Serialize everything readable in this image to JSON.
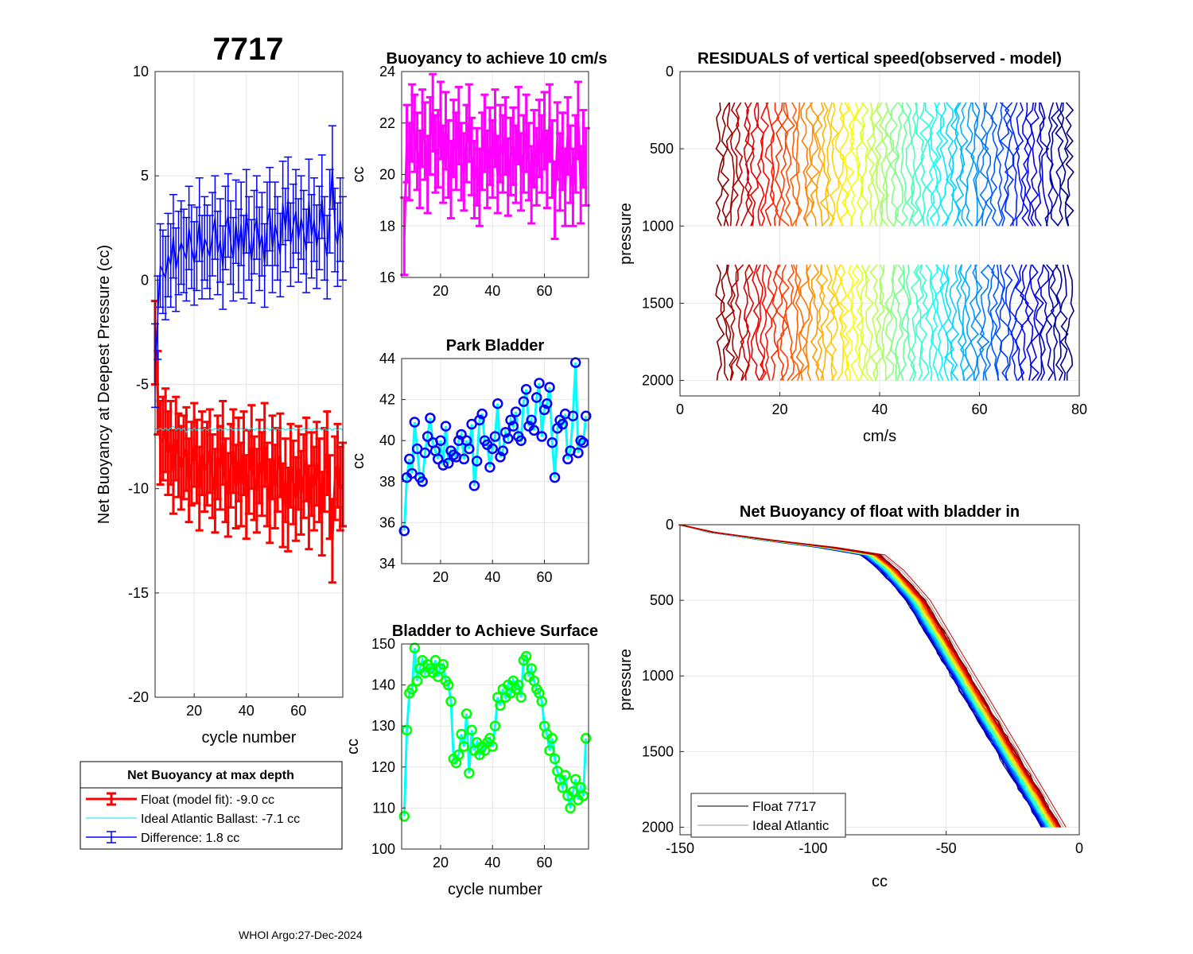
{
  "figure": {
    "main_title": "7717",
    "footer": "WHOI Argo:27-Dec-2024"
  },
  "colors": {
    "float_fit": "#ff0000",
    "ideal": "#00e5ee",
    "difference": "#0000ff",
    "buoyancy": "#ff00ff",
    "park_line": "#00ffff",
    "park_marker": "#0000ff",
    "surface_line": "#00ffff",
    "surface_marker": "#00ff00",
    "grid": "#e6e6e6"
  },
  "legend": {
    "title": "Net Buoyancy at max depth",
    "items": [
      {
        "label": "Float (model fit):  -9.0 cc",
        "color": "#ff0000"
      },
      {
        "label": "Ideal Atlantic Ballast:  -7.1 cc",
        "color": "#00e5ee"
      },
      {
        "label": "Difference:   1.8 cc",
        "color": "#0000ff"
      }
    ]
  },
  "legend2": {
    "items": [
      {
        "label": "Float 7717",
        "color": "#000000"
      },
      {
        "label": "Ideal Atlantic",
        "color": "#9a9a9a"
      }
    ]
  },
  "chart_data": [
    {
      "id": "net-buoyancy",
      "type": "line",
      "title": "",
      "xlabel": "cycle number",
      "ylabel": "Net Buoyancy at Deepest Pressure (cc)",
      "xlim": [
        5,
        77
      ],
      "ylim": [
        -20,
        10
      ],
      "xticks": [
        20,
        40,
        60
      ],
      "yticks": [
        -20,
        -15,
        -10,
        -5,
        0,
        5,
        10
      ],
      "grid": true,
      "x": [
        5,
        6,
        7,
        8,
        9,
        10,
        11,
        12,
        13,
        14,
        15,
        16,
        17,
        18,
        19,
        20,
        21,
        22,
        23,
        24,
        25,
        26,
        27,
        28,
        29,
        30,
        31,
        32,
        33,
        34,
        35,
        36,
        37,
        38,
        39,
        40,
        41,
        42,
        43,
        44,
        45,
        46,
        47,
        48,
        49,
        50,
        51,
        52,
        53,
        54,
        55,
        56,
        57,
        58,
        59,
        60,
        61,
        62,
        63,
        64,
        65,
        66,
        67,
        68,
        69,
        70,
        71,
        72,
        73,
        74,
        75,
        76,
        77
      ],
      "series": [
        {
          "name": "Float (model fit)",
          "values": [
            -3.0,
            -5.4,
            -7.8,
            -7.6,
            -7.2,
            -8.3,
            -7.8,
            -9.2,
            -7.6,
            -8.4,
            -9.0,
            -8.5,
            -8.1,
            -9.6,
            -8.8,
            -7.9,
            -8.7,
            -10.0,
            -8.3,
            -9.1,
            -8.8,
            -8.2,
            -9.4,
            -10.1,
            -8.5,
            -9.0,
            -7.8,
            -9.6,
            -10.3,
            -8.9,
            -8.2,
            -9.9,
            -8.6,
            -9.8,
            -8.3,
            -10.4,
            -9.2,
            -8.0,
            -9.5,
            -10.1,
            -8.7,
            -9.3,
            -7.9,
            -9.8,
            -10.6,
            -8.5,
            -9.9,
            -9.1,
            -8.4,
            -10.8,
            -9.6,
            -11.0,
            -8.9,
            -9.7,
            -10.5,
            -9.0,
            -10.2,
            -9.4,
            -8.6,
            -10.9,
            -9.3,
            -10.0,
            -8.8,
            -9.6,
            -11.2,
            -9.1,
            -8.3,
            -10.4,
            -12.5,
            -9.5,
            -8.9,
            -10.0,
            -9.8
          ],
          "error": 2.0,
          "color": "#ff0000"
        },
        {
          "name": "Ideal Atlantic Ballast",
          "values": [
            -7.1,
            -7.2,
            -7.1,
            -7.2,
            -7.1,
            -7.2,
            -7.1,
            -7.0,
            -7.2,
            -7.1,
            -7.2,
            -7.1,
            -7.3,
            -7.1,
            -7.2,
            -7.1,
            -7.2,
            -7.1,
            -7.2,
            -7.1,
            -7.2,
            -7.1,
            -7.2,
            -7.1,
            -7.2,
            -7.1,
            -7.2,
            -7.1,
            -7.2,
            -7.1,
            -7.2,
            -7.1,
            -7.2,
            -7.1,
            -7.2,
            -7.1,
            -7.2,
            -7.1,
            -7.2,
            -7.1,
            -7.2,
            -7.1,
            -7.2,
            -7.1,
            -7.2,
            -7.1,
            -7.2,
            -7.1,
            -7.2,
            -7.1,
            -7.2,
            -7.1,
            -7.2,
            -7.1,
            -7.2,
            -7.1,
            -7.2,
            -7.1,
            -7.2,
            -7.1,
            -7.2,
            -7.1,
            -7.2,
            -7.1,
            -7.2,
            -7.1,
            -7.2,
            -7.1,
            -7.2,
            -7.1,
            -7.2,
            -7.1,
            -7.2
          ],
          "color": "#00e5ee"
        },
        {
          "name": "Difference",
          "values": [
            -4.1,
            -1.8,
            0.7,
            0.4,
            0.1,
            1.2,
            0.7,
            2.1,
            0.5,
            1.3,
            1.8,
            1.4,
            1.0,
            2.5,
            1.6,
            0.8,
            1.5,
            2.9,
            1.1,
            2.0,
            1.6,
            1.1,
            2.2,
            3.0,
            1.3,
            1.9,
            0.6,
            2.5,
            3.1,
            1.8,
            1.0,
            2.8,
            1.4,
            2.7,
            1.1,
            3.3,
            2.0,
            0.9,
            2.3,
            3.0,
            1.5,
            2.2,
            0.7,
            2.7,
            3.4,
            1.4,
            2.7,
            2.0,
            1.2,
            3.7,
            2.4,
            3.9,
            1.7,
            2.6,
            3.3,
            1.9,
            3.0,
            2.3,
            1.4,
            3.8,
            2.1,
            2.9,
            1.6,
            2.5,
            4.0,
            2.0,
            1.1,
            3.3,
            5.4,
            2.4,
            1.7,
            2.9,
            2.0
          ],
          "error": 2.0,
          "color": "#0000ff"
        }
      ]
    },
    {
      "id": "buoyancy-10cms",
      "type": "line",
      "title": "Buoyancy to achieve 10 cm/s",
      "xlabel": "",
      "ylabel": "cc",
      "xlim": [
        5,
        77
      ],
      "ylim": [
        16,
        24
      ],
      "xticks": [
        20,
        40,
        60
      ],
      "yticks": [
        16,
        18,
        20,
        22,
        24
      ],
      "grid": true,
      "x": [
        6,
        7,
        8,
        9,
        10,
        11,
        12,
        13,
        14,
        15,
        16,
        17,
        18,
        19,
        20,
        21,
        22,
        23,
        24,
        25,
        26,
        27,
        28,
        29,
        30,
        31,
        32,
        33,
        34,
        35,
        36,
        37,
        38,
        39,
        40,
        41,
        42,
        43,
        44,
        45,
        46,
        47,
        48,
        49,
        50,
        51,
        52,
        53,
        54,
        55,
        56,
        57,
        58,
        59,
        60,
        61,
        62,
        63,
        64,
        65,
        66,
        67,
        68,
        69,
        70,
        71,
        72,
        73,
        74,
        75,
        76
      ],
      "series": [
        {
          "name": "Buoyancy",
          "values": [
            17.6,
            21.2,
            20.5,
            22.0,
            21.6,
            20.9,
            20.2,
            21.8,
            21.3,
            20.0,
            21.5,
            22.4,
            20.8,
            21.0,
            22.1,
            20.4,
            21.7,
            20.6,
            19.8,
            21.4,
            20.9,
            21.9,
            20.5,
            20.1,
            21.2,
            22.0,
            20.7,
            19.8,
            20.3,
            19.5,
            20.9,
            21.6,
            20.2,
            21.1,
            20.6,
            21.8,
            20.0,
            21.2,
            20.8,
            21.5,
            19.9,
            20.7,
            21.1,
            20.4,
            21.9,
            20.1,
            20.8,
            21.6,
            20.5,
            19.6,
            21.0,
            20.3,
            21.4,
            20.8,
            21.7,
            20.2,
            22.0,
            20.6,
            19.0,
            21.3,
            20.1,
            20.9,
            19.5,
            21.5,
            20.4,
            19.5,
            20.8,
            22.1,
            19.6,
            21.0,
            20.3
          ],
          "error": 1.5,
          "color": "#ff00ff"
        }
      ]
    },
    {
      "id": "park-bladder",
      "type": "line",
      "title": "Park Bladder",
      "xlabel": "",
      "ylabel": "cc",
      "xlim": [
        5,
        77
      ],
      "ylim": [
        34,
        44
      ],
      "xticks": [
        20,
        40,
        60
      ],
      "yticks": [
        34,
        36,
        38,
        40,
        42,
        44
      ],
      "grid": true,
      "x": [
        6,
        7,
        8,
        9,
        10,
        11,
        12,
        13,
        14,
        15,
        16,
        17,
        18,
        19,
        20,
        21,
        22,
        23,
        24,
        25,
        26,
        27,
        28,
        29,
        30,
        31,
        32,
        33,
        34,
        35,
        36,
        37,
        38,
        39,
        40,
        41,
        42,
        43,
        44,
        45,
        46,
        47,
        48,
        49,
        50,
        51,
        52,
        53,
        54,
        55,
        56,
        57,
        58,
        59,
        60,
        61,
        62,
        63,
        64,
        65,
        66,
        67,
        68,
        69,
        70,
        71,
        72,
        73,
        74,
        75,
        76
      ],
      "series": [
        {
          "name": "Park Bladder",
          "values": [
            35.6,
            38.2,
            39.1,
            38.4,
            40.9,
            39.6,
            38.2,
            38.0,
            39.4,
            40.2,
            41.1,
            39.9,
            39.5,
            39.1,
            40.0,
            38.8,
            40.7,
            38.9,
            39.5,
            39.3,
            39.2,
            40.0,
            40.3,
            39.1,
            40.0,
            39.6,
            40.8,
            37.8,
            39.0,
            41.0,
            41.3,
            40.0,
            39.8,
            38.7,
            39.6,
            40.2,
            41.8,
            39.2,
            39.5,
            40.4,
            40.1,
            41.0,
            40.7,
            41.4,
            40.2,
            40.0,
            41.9,
            42.5,
            40.7,
            41.0,
            40.5,
            42.1,
            42.8,
            40.2,
            41.5,
            41.8,
            42.6,
            39.9,
            38.2,
            40.6,
            41.0,
            40.8,
            41.3,
            39.1,
            39.5,
            41.2,
            43.8,
            39.4,
            40.0,
            39.9,
            41.2
          ],
          "marker_color": "#0000ff",
          "line_color": "#00ffff"
        }
      ]
    },
    {
      "id": "bladder-surface",
      "type": "line",
      "title": "Bladder to Achieve Surface",
      "xlabel": "cycle number",
      "ylabel": "cc",
      "xlim": [
        5,
        77
      ],
      "ylim": [
        100,
        150
      ],
      "xticks": [
        20,
        40,
        60
      ],
      "yticks": [
        100,
        110,
        120,
        130,
        140,
        150
      ],
      "grid": true,
      "x": [
        6,
        7,
        8,
        9,
        10,
        11,
        12,
        13,
        14,
        15,
        16,
        17,
        18,
        19,
        20,
        21,
        22,
        23,
        24,
        25,
        26,
        27,
        28,
        29,
        30,
        31,
        32,
        33,
        34,
        35,
        36,
        37,
        38,
        39,
        40,
        41,
        42,
        43,
        44,
        45,
        46,
        47,
        48,
        49,
        50,
        51,
        52,
        53,
        54,
        55,
        56,
        57,
        58,
        59,
        60,
        61,
        62,
        63,
        64,
        65,
        66,
        67,
        68,
        69,
        70,
        71,
        72,
        73,
        74,
        75,
        76
      ],
      "series": [
        {
          "name": "Bladder",
          "values": [
            108,
            129,
            138,
            139,
            149,
            141,
            144,
            146,
            143,
            145,
            144,
            143,
            146,
            142,
            144,
            145,
            141,
            140,
            136,
            122,
            121,
            123,
            128,
            125,
            133,
            118.5,
            129,
            124,
            126,
            123,
            125,
            124,
            126,
            127,
            125,
            130,
            137,
            135,
            139,
            137,
            140,
            138,
            141,
            139,
            140,
            137,
            146,
            147,
            142,
            144,
            141,
            139,
            138,
            136,
            130,
            128,
            124,
            127,
            122,
            119,
            117,
            115,
            118,
            113,
            110,
            114,
            117,
            112,
            115,
            113,
            127
          ],
          "marker_color": "#00ff00",
          "line_color": "#00ffff"
        }
      ]
    },
    {
      "id": "residuals",
      "type": "line",
      "title": "RESIDUALS of vertical speed(observed - model)",
      "xlabel": "cm/s",
      "ylabel": "pressure",
      "xlim": [
        0,
        80
      ],
      "ylim": [
        2100,
        0
      ],
      "y_reversed": true,
      "xticks": [
        0,
        20,
        40,
        60,
        80
      ],
      "yticks": [
        0,
        500,
        1000,
        1500,
        2000
      ],
      "grid": true,
      "profile_count": 71,
      "offset_start_cms": 8,
      "offset_step_cms": 1,
      "segments_pressure": [
        [
          200,
          1000
        ],
        [
          1250,
          2000
        ]
      ],
      "colormap": "jet"
    },
    {
      "id": "net-buoyancy-bladder",
      "type": "line",
      "title": "Net Buoyancy of float with bladder in",
      "xlabel": "cc",
      "ylabel": "pressure",
      "xlim": [
        -150,
        0
      ],
      "ylim": [
        2050,
        0
      ],
      "y_reversed": true,
      "xticks": [
        -150,
        -100,
        -50,
        0
      ],
      "yticks": [
        0,
        500,
        1000,
        1500,
        2000
      ],
      "grid": true,
      "reference_profile": {
        "pressure": [
          0,
          50,
          100,
          150,
          200,
          300,
          500,
          1000,
          1500,
          2000
        ],
        "cc": [
          -150,
          -138,
          -118,
          -95,
          -78,
          -71,
          -61,
          -44,
          -27,
          -10
        ]
      },
      "profile_count": 71,
      "spread_cc": [
        -4,
        3
      ],
      "colormap": "jet",
      "ideal_color": "#9a9a9a",
      "float_color": "#000000"
    }
  ]
}
